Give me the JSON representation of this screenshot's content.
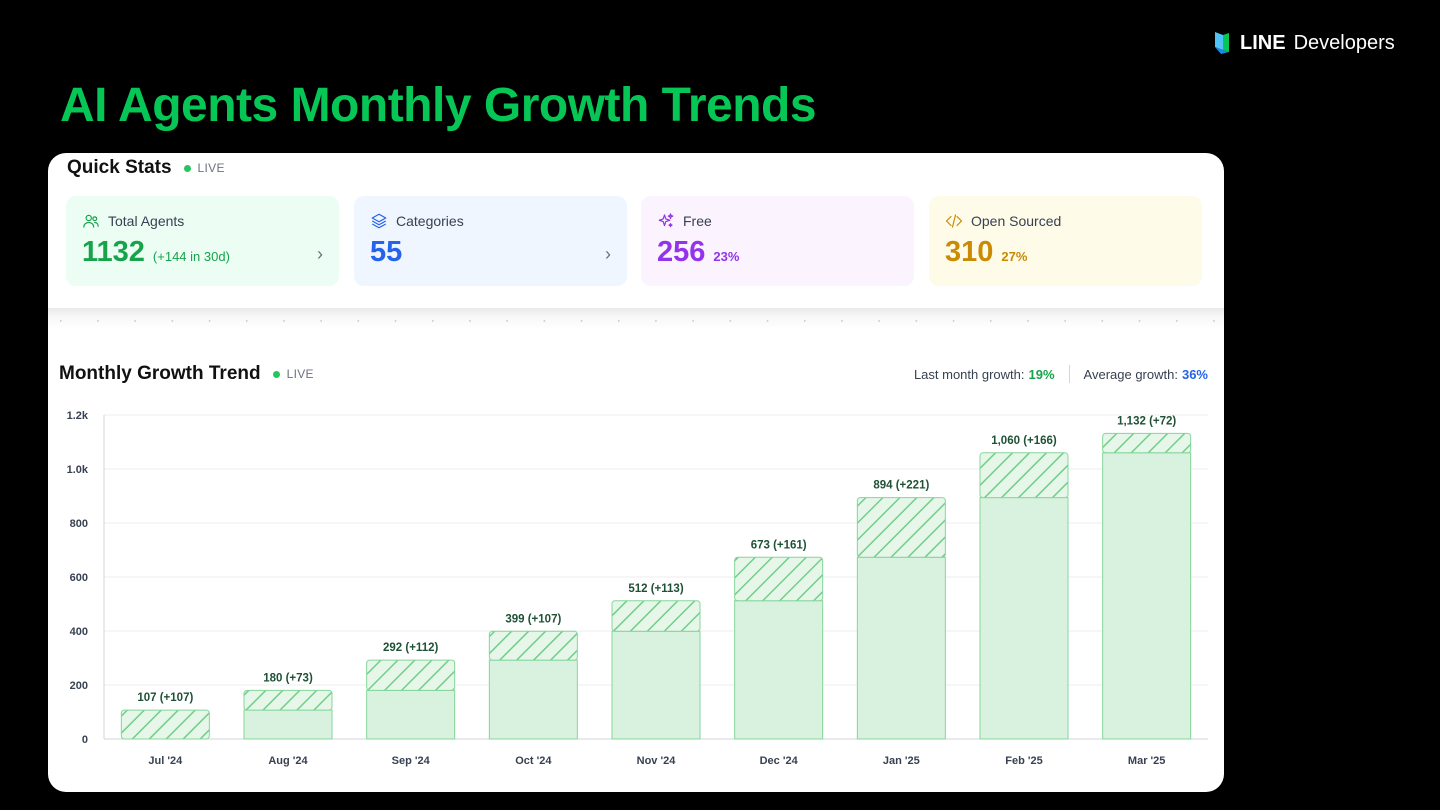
{
  "brand": {
    "name_bold": "LINE",
    "name_light": "Developers"
  },
  "page_title": "AI Agents Monthly Growth Trends",
  "quick_stats": {
    "title": "Quick Stats",
    "live_label": "LIVE",
    "cards": [
      {
        "label": "Total Agents",
        "value": "1132",
        "sub": "(+144 in 30d)",
        "icon": "users-icon",
        "color": "#16a34a",
        "bg": "#ecfdf3"
      },
      {
        "label": "Categories",
        "value": "55",
        "sub": "",
        "icon": "layers-icon",
        "color": "#2563eb",
        "bg": "#eff6ff"
      },
      {
        "label": "Free",
        "value": "256",
        "sub": "23%",
        "icon": "sparkles-icon",
        "color": "#9333ea",
        "bg": "#fbf3fe"
      },
      {
        "label": "Open Sourced",
        "value": "310",
        "sub": "27%",
        "icon": "code-icon",
        "color": "#ca8a04",
        "bg": "#fefbe8"
      }
    ]
  },
  "growth": {
    "title": "Monthly Growth Trend",
    "live_label": "LIVE",
    "last_month_label": "Last month growth:",
    "last_month_value": "19%",
    "average_label": "Average growth:",
    "average_value": "36%"
  },
  "chart_data": {
    "type": "bar",
    "categories": [
      "Jul '24",
      "Aug '24",
      "Sep '24",
      "Oct '24",
      "Nov '24",
      "Dec '24",
      "Jan '25",
      "Feb '25",
      "Mar '25"
    ],
    "values": [
      107,
      180,
      292,
      399,
      512,
      673,
      894,
      1060,
      1132
    ],
    "increments": [
      107,
      73,
      112,
      107,
      113,
      161,
      221,
      166,
      72
    ],
    "data_labels": [
      "107 (+107)",
      "180 (+73)",
      "292 (+112)",
      "399 (+107)",
      "512 (+113)",
      "673 (+161)",
      "894 (+221)",
      "1,060 (+166)",
      "1,132 (+72)"
    ],
    "y_ticks": [
      0,
      200,
      400,
      600,
      800,
      1000,
      1200
    ],
    "y_tick_labels": [
      "0",
      "200",
      "400",
      "600",
      "800",
      "1.0k",
      "1.2k"
    ],
    "ylim": [
      0,
      1200
    ],
    "grid": true,
    "colors": {
      "base": "#d9f2df",
      "stroke": "#86d59a",
      "hatch": "#6fcf88",
      "label": "#1f5136"
    }
  }
}
